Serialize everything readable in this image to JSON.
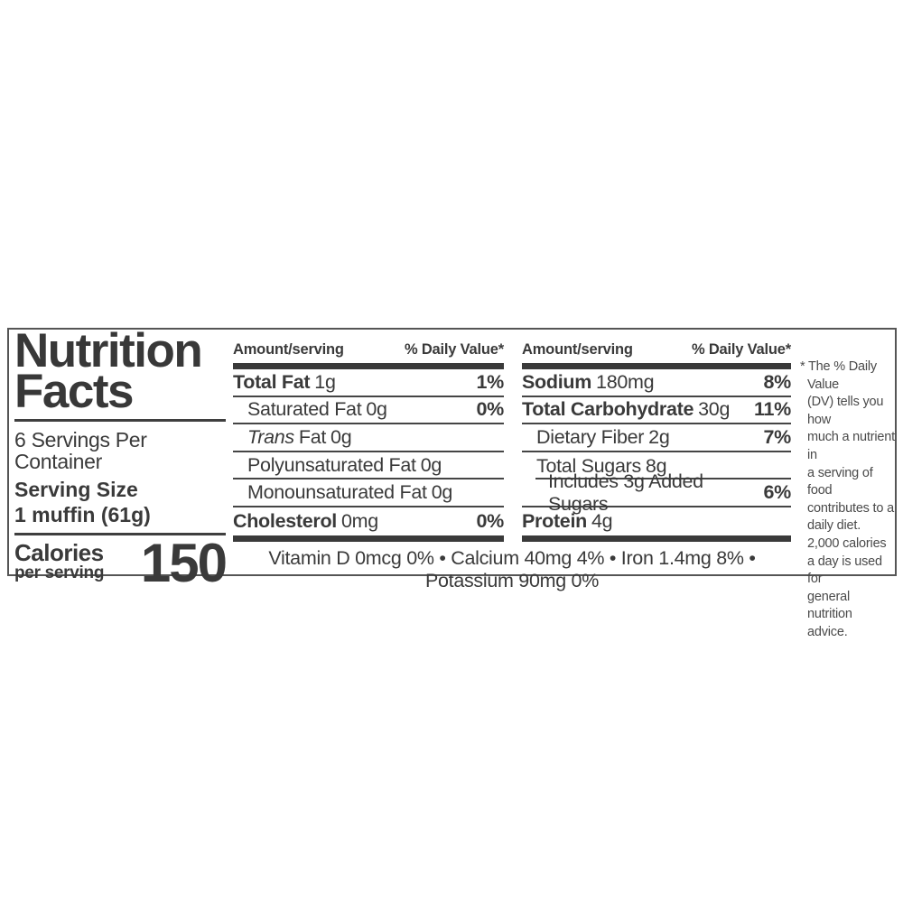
{
  "label": {
    "title_line1": "Nutrition",
    "title_line2": "Facts",
    "servings_per_container": "6 Servings Per Container",
    "serving_size_label": "Serving Size",
    "serving_size_value": "1 muffin (61g)",
    "calories_label": "Calories",
    "calories_sublabel": "per serving",
    "calories_value": "150",
    "column_header": {
      "amount": "Amount/serving",
      "dv": "% Daily Value*"
    },
    "col1": {
      "rows": [
        {
          "name": "Total Fat",
          "amount": "1g",
          "dv": "1%"
        },
        {
          "name": "Saturated Fat",
          "amount": "0g",
          "dv": "0%"
        },
        {
          "name_italic": "Trans",
          "name": "Fat",
          "amount": "0g",
          "dv": ""
        },
        {
          "name": "Polyunsaturated Fat",
          "amount": "0g",
          "dv": ""
        },
        {
          "name": "Monounsaturated Fat",
          "amount": "0g",
          "dv": ""
        },
        {
          "name": "Cholesterol",
          "amount": "0mg",
          "dv": "0%"
        }
      ]
    },
    "col2": {
      "rows": [
        {
          "name": "Sodium",
          "amount": "180mg",
          "dv": "8%"
        },
        {
          "name": "Total Carbohydrate",
          "amount": "30g",
          "dv": "11%"
        },
        {
          "name": "Dietary Fiber",
          "amount": "2g",
          "dv": "7%"
        },
        {
          "name": "Total Sugars",
          "amount": "8g",
          "dv": ""
        },
        {
          "name": "Includes 3g Added Sugars",
          "amount": "",
          "dv": "6%"
        },
        {
          "name": "Protein",
          "amount": "4g",
          "dv": ""
        }
      ]
    },
    "micronutrients": "Vitamin D 0mcg 0% • Calcium 40mg 4% • Iron 1.4mg 8% • Potassium 90mg 0%",
    "footnote_lines": [
      "* The % Daily Value",
      "(DV) tells you how",
      "much a nutrient in",
      "a serving of food",
      "contributes to a",
      "daily diet.",
      "2,000 calories",
      "a day is used for",
      "general nutrition",
      "advice."
    ]
  },
  "colors": {
    "ink": "#3a3a3a",
    "rule": "#454545",
    "border": "#555555"
  }
}
